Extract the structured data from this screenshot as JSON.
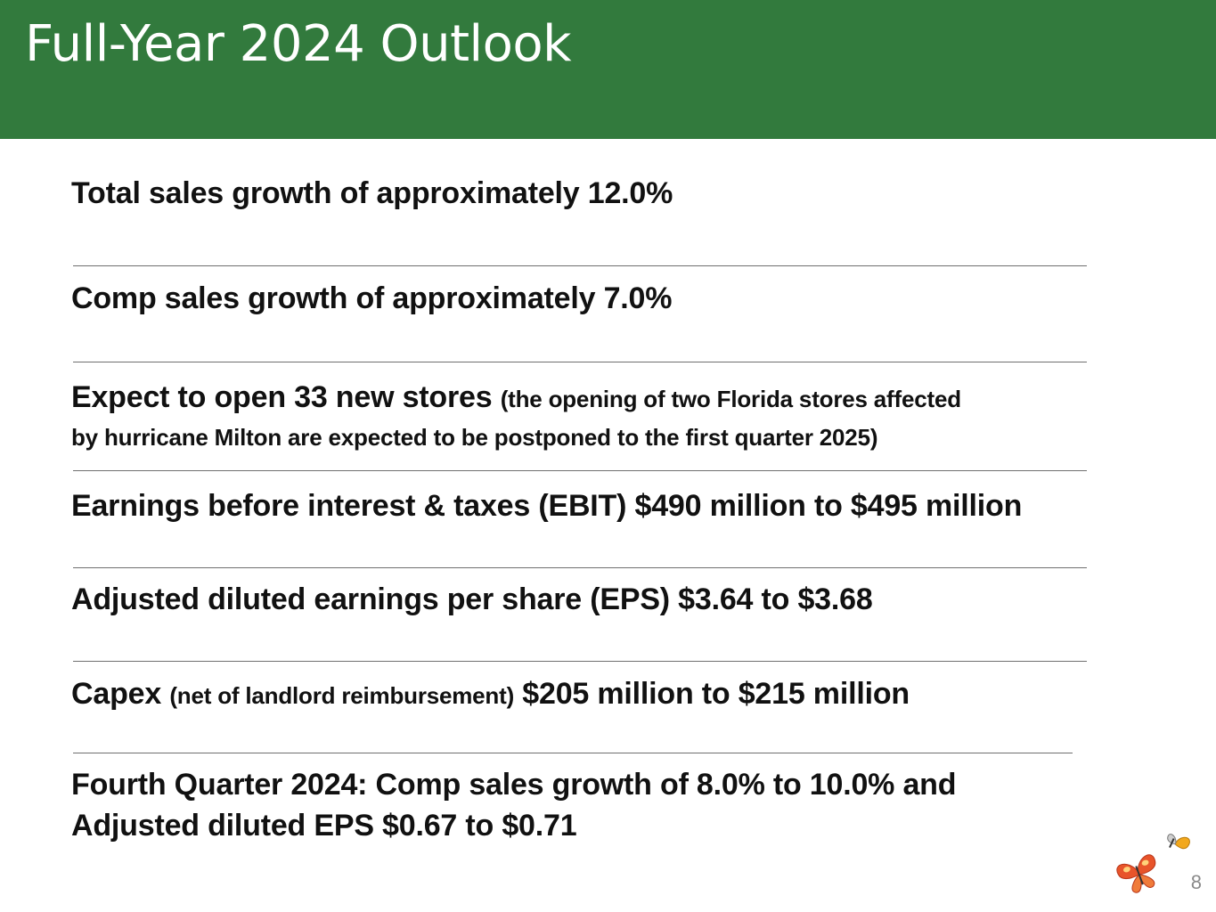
{
  "slide": {
    "title": "Full-Year 2024 Outlook",
    "page_number": "8"
  },
  "items": {
    "sales": "Total sales growth of approximately 12.0%",
    "comp": "Comp sales growth of  approximately 7.0%",
    "stores_main": "Expect to open 33 new stores",
    "stores_note_line1": "(the opening of two Florida stores affected",
    "stores_note_line2": "by hurricane Milton are expected to be postponed to the first quarter 2025)",
    "ebit": "Earnings before interest & taxes (EBIT) $490 million to $495 million",
    "eps": "Adjusted diluted earnings per share (EPS) $3.64 to $3.68",
    "capex_main": "Capex",
    "capex_note": "(net of landlord reimbursement)",
    "capex_value": "$205 million to $215 million",
    "q4_line1": "Fourth Quarter 2024: Comp sales growth of  8.0% to 10.0% and",
    "q4_line2": "Adjusted diluted EPS $0.67 to $0.71"
  },
  "colors": {
    "header_bg": "#327a3d",
    "butterfly_large": "#e8542a",
    "butterfly_small": "#f2a81d"
  },
  "logo": {
    "icon_name": "butterflies-logo-icon"
  }
}
